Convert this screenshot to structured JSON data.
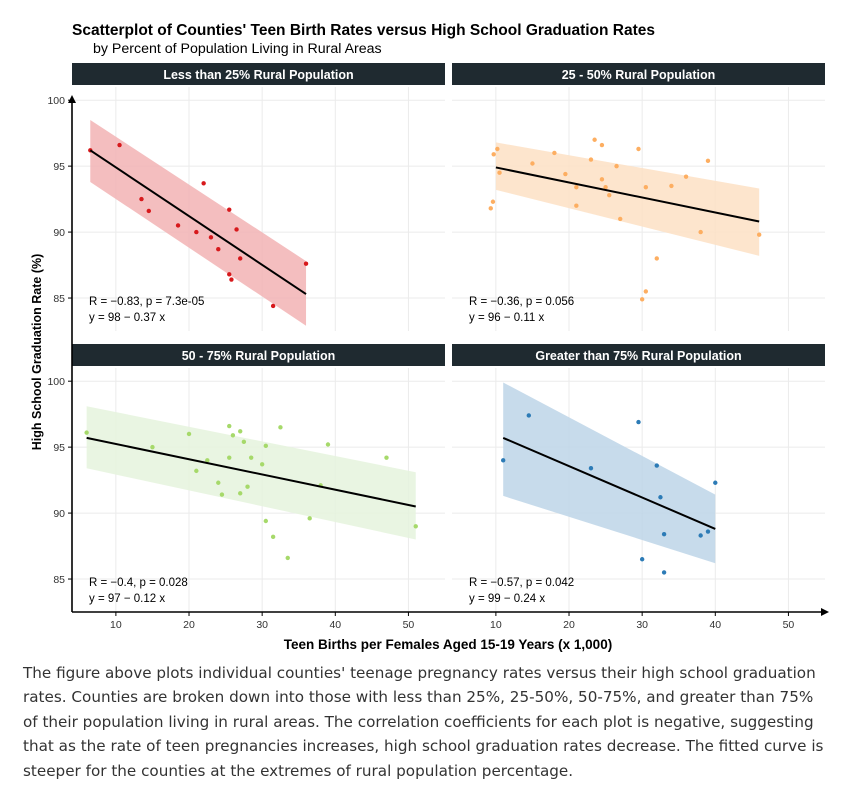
{
  "title": "Scatterplot of Counties' Teen Birth Rates versus High School Graduation Rates",
  "subtitle": "by Percent of Population Living in Rural Areas",
  "xlabel": "Teen Births per Females Aged 15-19 Years (x 1,000)",
  "ylabel": "High School Graduation Rate (%)",
  "caption": "The figure above plots individual counties' teenage pregnancy rates versus their high school graduation rates. Counties are broken down into those with less than 25%, 25-50%, 50-75%, and greater than 75% of their population living in rural areas. The correlation coefficients for each plot is negative, suggesting that as the rate of teen pregnancies increases, high school graduation rates decrease. The fitted curve is steeper for the counties at the extremes of rural population percentage.",
  "chart_data": [
    {
      "type": "scatter",
      "panel": "Less than 25% Rural Population",
      "xlim": [
        4,
        55
      ],
      "ylim": [
        82.5,
        101
      ],
      "xticks": [
        10,
        20,
        30,
        40,
        50
      ],
      "yticks": [
        85,
        90,
        95,
        100
      ],
      "color": "#d7191c",
      "band_color": "#f2b3b4",
      "points": [
        [
          6.5,
          96.2
        ],
        [
          10.5,
          96.6
        ],
        [
          13.5,
          92.5
        ],
        [
          14.5,
          91.6
        ],
        [
          18.5,
          90.5
        ],
        [
          21,
          90
        ],
        [
          22,
          93.7
        ],
        [
          23,
          89.6
        ],
        [
          24,
          88.7
        ],
        [
          25.5,
          91.7
        ],
        [
          25.5,
          86.8
        ],
        [
          25.8,
          86.4
        ],
        [
          26.5,
          90.2
        ],
        [
          27,
          88
        ],
        [
          31.5,
          84.4
        ],
        [
          36,
          87.6
        ]
      ],
      "fit": {
        "x": [
          6.5,
          36
        ],
        "y": [
          96.2,
          85.3
        ]
      },
      "band": {
        "x": [
          6.5,
          36
        ],
        "upper": [
          98.5,
          87.8
        ],
        "lower": [
          93.8,
          82.9
        ]
      },
      "stat_r": "R = −0.83, p = 7.3e-05",
      "stat_eq": "y = 98 − 0.37 x"
    },
    {
      "type": "scatter",
      "panel": "25 - 50% Rural Population",
      "xlim": [
        4,
        55
      ],
      "ylim": [
        82.5,
        101
      ],
      "xticks": [
        10,
        20,
        30,
        40,
        50
      ],
      "yticks": [
        85,
        90,
        95,
        100
      ],
      "color": "#fdae61",
      "band_color": "#fde0c4",
      "points": [
        [
          9.3,
          91.8
        ],
        [
          9.6,
          92.3
        ],
        [
          9.7,
          95.9
        ],
        [
          10.2,
          96.3
        ],
        [
          10.5,
          94.5
        ],
        [
          15,
          95.2
        ],
        [
          18,
          96
        ],
        [
          19.5,
          94.4
        ],
        [
          21,
          93.4
        ],
        [
          21,
          92
        ],
        [
          23,
          95.5
        ],
        [
          23.5,
          97
        ],
        [
          24.5,
          96.6
        ],
        [
          24.5,
          94
        ],
        [
          25,
          93.4
        ],
        [
          25.5,
          92.8
        ],
        [
          26.5,
          95
        ],
        [
          27,
          91
        ],
        [
          29.5,
          96.3
        ],
        [
          30,
          84.9
        ],
        [
          30.5,
          85.5
        ],
        [
          30.5,
          93.4
        ],
        [
          32,
          88
        ],
        [
          34,
          93.5
        ],
        [
          36,
          94.2
        ],
        [
          38,
          90
        ],
        [
          39,
          95.4
        ],
        [
          46,
          89.8
        ]
      ],
      "fit": {
        "x": [
          10,
          46
        ],
        "y": [
          94.9,
          90.8
        ]
      },
      "band": {
        "x": [
          10,
          46
        ],
        "upper": [
          96.8,
          93.3
        ],
        "lower": [
          93.2,
          88.2
        ]
      },
      "stat_r": "R = −0.36, p = 0.056",
      "stat_eq": "y = 96 − 0.11 x"
    },
    {
      "type": "scatter",
      "panel": "50 - 75% Rural Population",
      "xlim": [
        4,
        55
      ],
      "ylim": [
        82.5,
        101
      ],
      "xticks": [
        10,
        20,
        30,
        40,
        50
      ],
      "yticks": [
        85,
        90,
        95,
        100
      ],
      "color": "#a6d96a",
      "band_color": "#e5f3dd",
      "points": [
        [
          6,
          96.1
        ],
        [
          15,
          95
        ],
        [
          20,
          96
        ],
        [
          21,
          93.2
        ],
        [
          22.5,
          94
        ],
        [
          24,
          92.3
        ],
        [
          24.5,
          91.4
        ],
        [
          25.5,
          96.6
        ],
        [
          25.5,
          94.2
        ],
        [
          26,
          95.9
        ],
        [
          27,
          96.2
        ],
        [
          27,
          91.5
        ],
        [
          27.5,
          95.4
        ],
        [
          28,
          92
        ],
        [
          28.5,
          94.2
        ],
        [
          30,
          93.7
        ],
        [
          30.5,
          95.1
        ],
        [
          30.5,
          89.4
        ],
        [
          31.5,
          88.2
        ],
        [
          32.5,
          96.5
        ],
        [
          33.5,
          86.6
        ],
        [
          36.5,
          89.6
        ],
        [
          38,
          92.1
        ],
        [
          39,
          95.2
        ],
        [
          47,
          94.2
        ],
        [
          51,
          89
        ]
      ],
      "fit": {
        "x": [
          6,
          51
        ],
        "y": [
          95.7,
          90.5
        ]
      },
      "band": {
        "x": [
          6,
          51
        ],
        "upper": [
          98.1,
          93.1
        ],
        "lower": [
          93.4,
          88
        ]
      },
      "stat_r": "R = −0.4, p = 0.028",
      "stat_eq": "y = 97 − 0.12 x"
    },
    {
      "type": "scatter",
      "panel": "Greater than 75% Rural Population",
      "xlim": [
        4,
        55
      ],
      "ylim": [
        82.5,
        101
      ],
      "xticks": [
        10,
        20,
        30,
        40,
        50
      ],
      "yticks": [
        85,
        90,
        95,
        100
      ],
      "color": "#2c7bb6",
      "band_color": "#bdd5e8",
      "points": [
        [
          11,
          94
        ],
        [
          14.5,
          97.4
        ],
        [
          23,
          93.4
        ],
        [
          29.5,
          96.9
        ],
        [
          30,
          86.5
        ],
        [
          32,
          93.6
        ],
        [
          32.5,
          91.2
        ],
        [
          33,
          88.4
        ],
        [
          33,
          85.5
        ],
        [
          38,
          88.3
        ],
        [
          39,
          88.6
        ],
        [
          40,
          92.3
        ]
      ],
      "fit": {
        "x": [
          11,
          40
        ],
        "y": [
          95.7,
          88.8
        ]
      },
      "band": {
        "x": [
          11,
          40
        ],
        "upper": [
          99.9,
          91.4
        ],
        "lower": [
          91.3,
          86.2
        ]
      },
      "stat_r": "R = −0.57, p = 0.042",
      "stat_eq": "y = 99 − 0.24 x"
    }
  ]
}
